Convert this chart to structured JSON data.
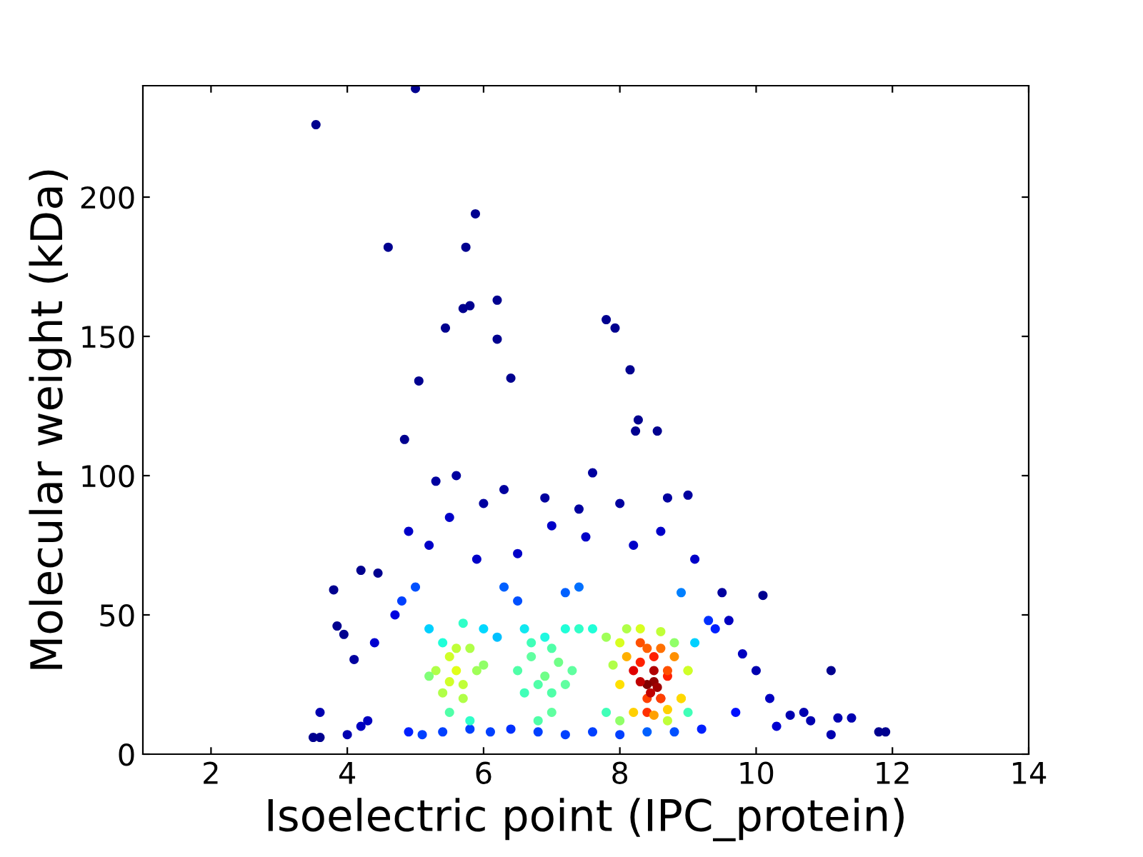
{
  "chart_data": {
    "type": "scatter",
    "xlabel": "Isoelectric point (IPC_protein)",
    "ylabel": "Molecular weight (kDa)",
    "xlim": [
      1,
      14
    ],
    "ylim": [
      0,
      240
    ],
    "xticks": [
      2,
      4,
      6,
      8,
      10,
      12,
      14
    ],
    "yticks": [
      0,
      50,
      100,
      150,
      200
    ],
    "grid": false,
    "marker": "circle",
    "x": [
      3.54,
      5.0,
      4.6,
      5.88,
      5.74,
      6.2,
      5.8,
      5.7,
      5.44,
      6.2,
      5.05,
      6.4,
      7.8,
      7.93,
      8.15,
      8.27,
      8.55,
      8.23,
      4.84,
      5.3,
      5.6,
      6.0,
      6.3,
      6.9,
      7.4,
      7.6,
      8.0,
      8.7,
      9.0,
      4.9,
      5.2,
      5.5,
      5.9,
      6.5,
      7.0,
      7.5,
      8.2,
      8.6,
      9.1,
      3.5,
      3.6,
      3.6,
      3.8,
      3.85,
      3.95,
      4.1,
      4.2,
      4.45,
      4.0,
      4.2,
      4.3,
      4.4,
      4.7,
      9.5,
      9.6,
      9.8,
      10.0,
      10.1,
      10.2,
      10.5,
      10.7,
      10.8,
      11.1,
      11.1,
      11.2,
      11.4,
      11.8,
      11.9,
      9.7,
      10.3,
      4.9,
      5.1,
      5.4,
      5.8,
      6.1,
      6.4,
      6.8,
      7.2,
      7.6,
      8.0,
      8.4,
      8.8,
      9.2,
      4.8,
      5.0,
      6.3,
      6.5,
      7.2,
      7.4,
      9.3,
      9.4,
      8.9,
      5.2,
      5.4,
      5.7,
      6.0,
      6.2,
      5.5,
      5.8,
      6.6,
      6.9,
      7.2,
      7.0,
      6.8,
      7.4,
      7.6,
      7.8,
      9.1,
      9.0,
      8.0,
      8.7,
      7.8,
      8.0,
      9.0,
      8.9,
      8.1,
      8.8,
      8.4,
      8.3,
      8.2,
      8.7,
      8.6,
      8.5,
      8.4,
      8.55,
      5.3,
      5.5,
      5.6,
      5.7,
      5.9,
      5.4,
      5.6,
      5.8,
      5.2,
      6.0,
      5.5,
      5.7,
      6.5,
      6.7,
      6.9,
      7.1,
      7.3,
      6.6,
      6.8,
      7.0,
      7.2,
      6.7,
      7.0,
      7.9,
      8.1,
      8.3,
      8.6,
      8.8,
      9.0,
      8.2,
      8.5,
      8.7,
      8.9,
      8.0,
      8.4,
      8.6,
      8.3,
      8.5,
      8.7,
      8.4,
      8.6,
      8.3,
      8.5,
      8.45
    ],
    "values": [
      226,
      239,
      182,
      194,
      182,
      163,
      161,
      160,
      153,
      149,
      134,
      135,
      156,
      153,
      138,
      120,
      116,
      116,
      113,
      98,
      100,
      90,
      95,
      92,
      88,
      101,
      90,
      92,
      93,
      80,
      75,
      85,
      70,
      72,
      82,
      78,
      75,
      80,
      70,
      6,
      6,
      15,
      59,
      46,
      43,
      34,
      66,
      65,
      7,
      10,
      12,
      40,
      50,
      58,
      48,
      36,
      30,
      57,
      20,
      14,
      15,
      12,
      30,
      7,
      13,
      13,
      8,
      8,
      15,
      10,
      8,
      7,
      8,
      9,
      8,
      9,
      8,
      7,
      8,
      7,
      8,
      8,
      9,
      55,
      60,
      60,
      55,
      58,
      60,
      48,
      45,
      58,
      45,
      40,
      47,
      45,
      42,
      15,
      12,
      45,
      42,
      45,
      15,
      12,
      45,
      45,
      15,
      40,
      15,
      12,
      12,
      42,
      40,
      30,
      20,
      35,
      35,
      15,
      40,
      30,
      28,
      20,
      26,
      25,
      24,
      30,
      35,
      30,
      25,
      30,
      22,
      38,
      38,
      28,
      32,
      26,
      20,
      30,
      35,
      28,
      33,
      30,
      22,
      25,
      22,
      25,
      40,
      38,
      32,
      45,
      45,
      44,
      40,
      30,
      15,
      14,
      16,
      20,
      25,
      38,
      38,
      33,
      35,
      30,
      20,
      20,
      26,
      30,
      22
    ],
    "colors": [
      "#00008f",
      "#00008f",
      "#00008f",
      "#00008f",
      "#00008f",
      "#00008f",
      "#00008f",
      "#00008f",
      "#00008f",
      "#00008f",
      "#00008f",
      "#00008f",
      "#00008f",
      "#00008f",
      "#00008f",
      "#00008f",
      "#00008f",
      "#00008f",
      "#00008f",
      "#00009f",
      "#00009f",
      "#00009f",
      "#00009f",
      "#00009f",
      "#00009f",
      "#00009f",
      "#00009f",
      "#00009f",
      "#00009f",
      "#0000c8",
      "#0000c8",
      "#0000c8",
      "#0000c8",
      "#0000c8",
      "#0000c8",
      "#0000c8",
      "#0000c8",
      "#0000c8",
      "#0000c8",
      "#00008f",
      "#00008f",
      "#0000b0",
      "#00008f",
      "#00008f",
      "#00008f",
      "#00009f",
      "#00008f",
      "#00008f",
      "#0000b0",
      "#0000c0",
      "#0000c0",
      "#0000d0",
      "#0000e0",
      "#00009f",
      "#0000c0",
      "#0000c0",
      "#0000b0",
      "#00008f",
      "#0000c0",
      "#0000b0",
      "#0000b0",
      "#0000b0",
      "#00008f",
      "#0000b0",
      "#0000b0",
      "#0000b0",
      "#00008f",
      "#00008f",
      "#0010ff",
      "#0000d0",
      "#0020ff",
      "#0040ff",
      "#0040ff",
      "#0040ff",
      "#0040ff",
      "#0030ff",
      "#0040ff",
      "#0040ff",
      "#0040ff",
      "#0040ff",
      "#0060ff",
      "#0050ff",
      "#0020ff",
      "#0040ff",
      "#0050ff",
      "#0060ff",
      "#0050ff",
      "#0060ff",
      "#0070ff",
      "#0030ff",
      "#0020ff",
      "#0080ff",
      "#00d0ff",
      "#20ffd8",
      "#30ffc8",
      "#00d8ff",
      "#00c0ff",
      "#50ffa8",
      "#30ffc8",
      "#10e8f0",
      "#20f8e0",
      "#20ffd8",
      "#60ffa0",
      "#50ffa8",
      "#30ffc8",
      "#20ffd8",
      "#40ffb8",
      "#00d0ff",
      "#40ffb8",
      "#90ff68",
      "#c0ff38",
      "#a0ff58",
      "#d8ff20",
      "#c8ff30",
      "#ffe000",
      "#ffb000",
      "#ff9000",
      "#ff3000",
      "#ff5000",
      "#e00000",
      "#ff2000",
      "#d00000",
      "#900000",
      "#800000",
      "#a00000",
      "#b0ff48",
      "#d0ff28",
      "#e0ff18",
      "#c0ff38",
      "#a0ff58",
      "#b0ff48",
      "#c0ff38",
      "#b0ff48",
      "#80ff78",
      "#90ff68",
      "#d0ff28",
      "#b0ff48",
      "#50ffa8",
      "#60ffa0",
      "#70ff88",
      "#70ff88",
      "#60ffa0",
      "#40ffb8",
      "#50ffa8",
      "#50ffa8",
      "#60ffa0",
      "#40ffb8",
      "#50ffa8",
      "#b0ff48",
      "#b0ff48",
      "#d8ff20",
      "#c0ff38",
      "#90ff68",
      "#d0ff28",
      "#ffd000",
      "#ffa000",
      "#ffd000",
      "#ffd800",
      "#ffe000",
      "#ff6000",
      "#ff7000",
      "#ff2000",
      "#ff2000",
      "#ff5000",
      "#ff4000",
      "#ff4000",
      "#c00000",
      "#b00000",
      "#c00000"
    ]
  }
}
